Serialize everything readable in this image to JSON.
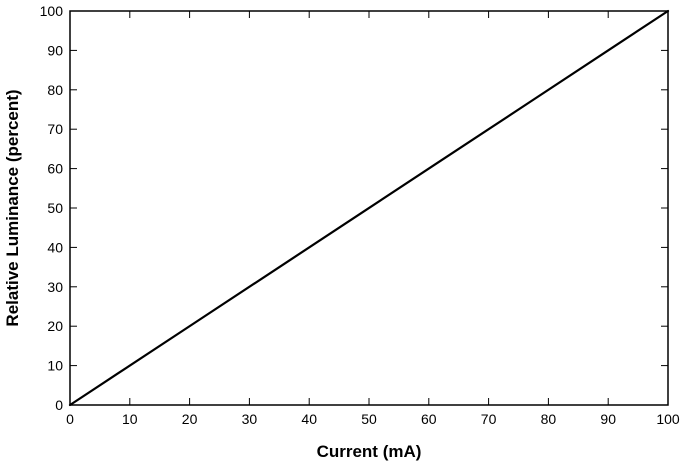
{
  "chart_data": {
    "type": "line",
    "title": "",
    "xlabel": "Current (mA)",
    "ylabel": "Relative Luminance (percent)",
    "xlim": [
      0,
      100
    ],
    "ylim": [
      0,
      100
    ],
    "x_ticks": [
      0,
      10,
      20,
      30,
      40,
      50,
      60,
      70,
      80,
      90,
      100
    ],
    "y_ticks": [
      0,
      10,
      20,
      30,
      40,
      50,
      60,
      70,
      80,
      90,
      100
    ],
    "grid": false,
    "legend": "none",
    "series": [
      {
        "color": "#000000",
        "x": [
          0,
          8,
          21,
          36,
          49,
          62,
          77,
          91,
          100
        ],
        "y": [
          0,
          8,
          21,
          36,
          49,
          62,
          77,
          91,
          100
        ]
      }
    ]
  }
}
